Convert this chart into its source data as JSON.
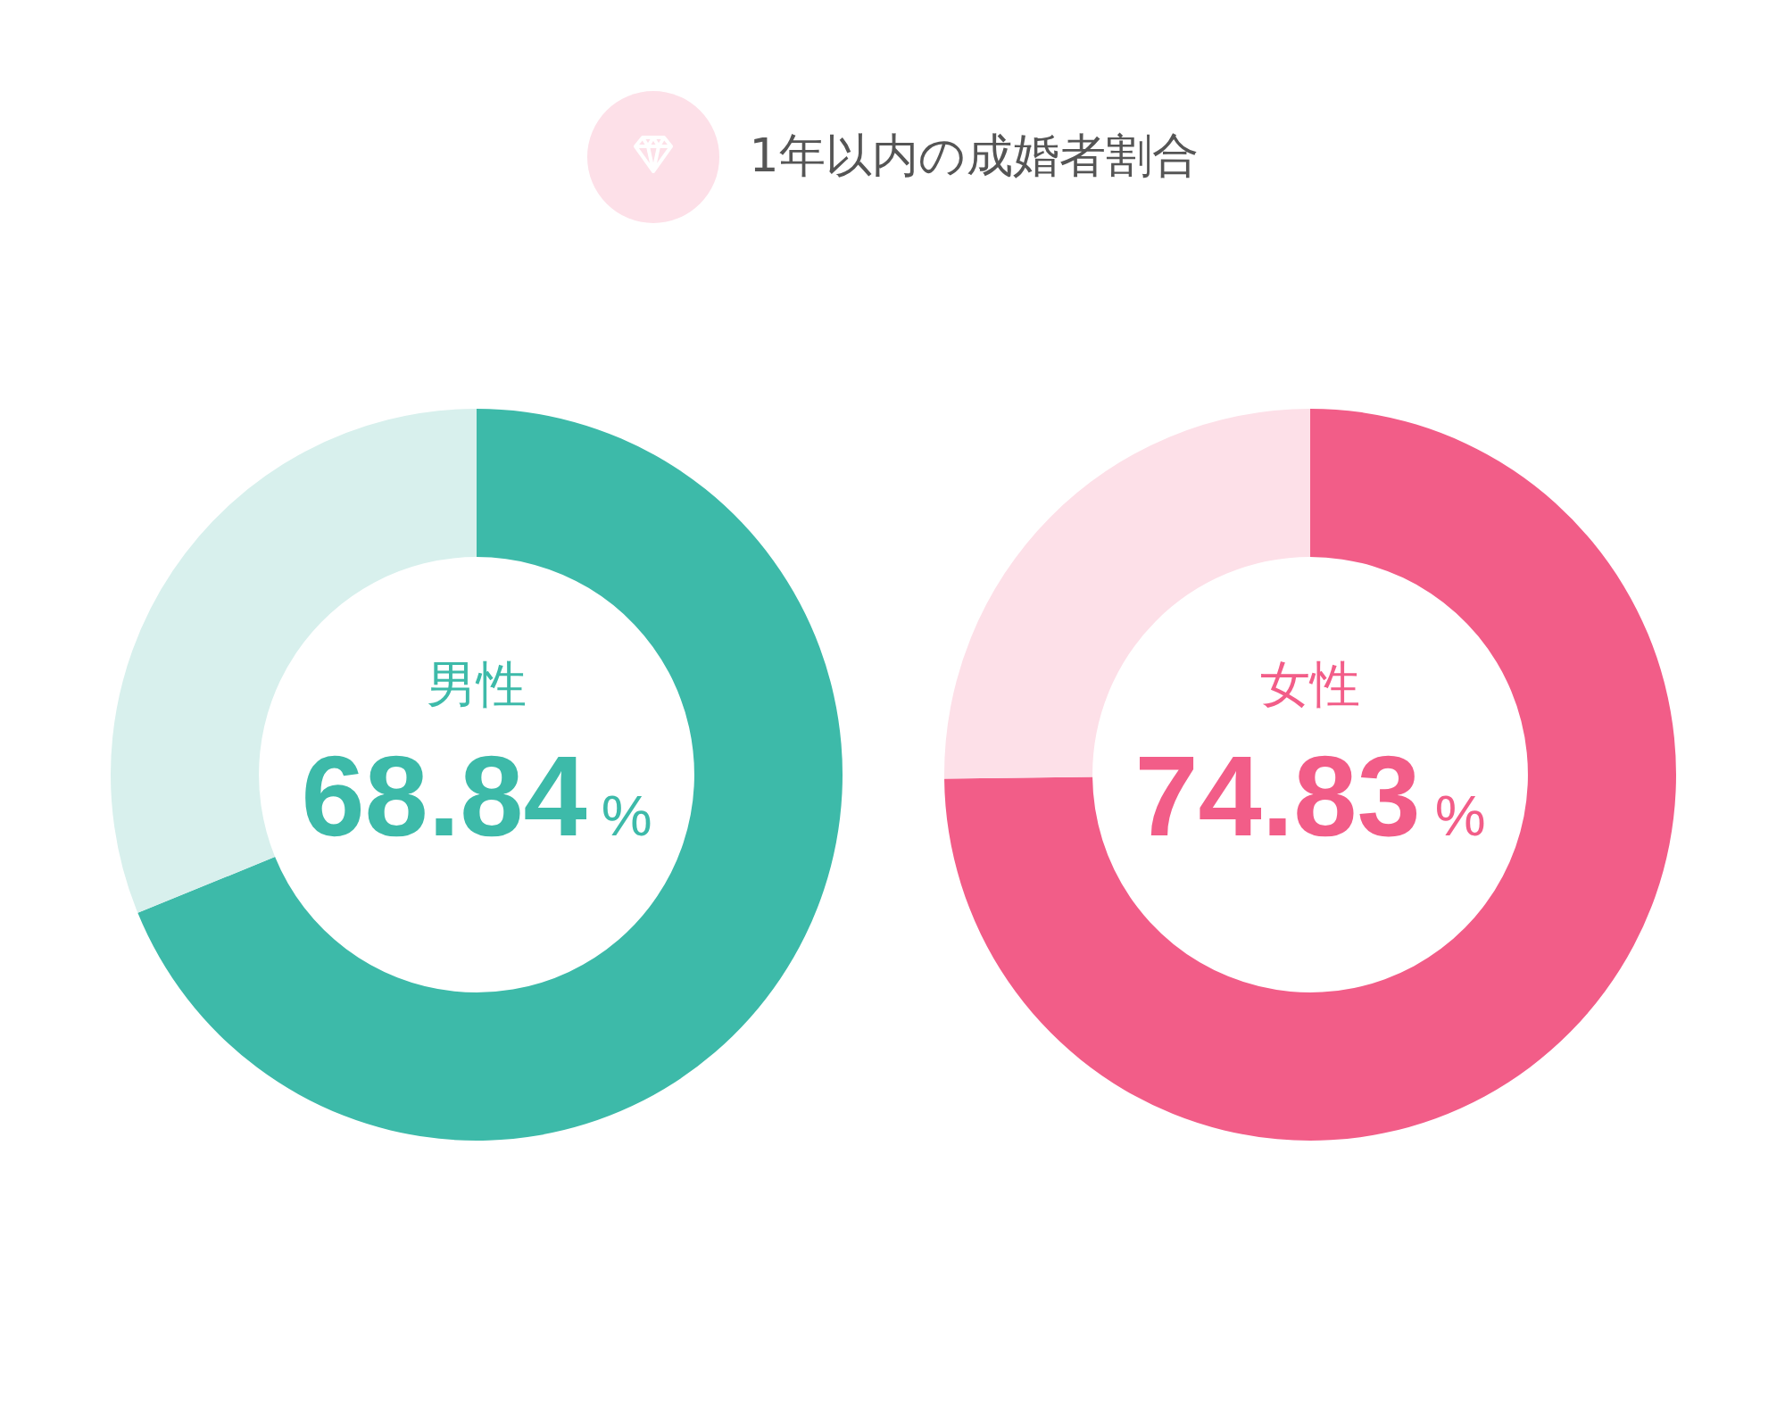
{
  "chart_data": [
    {
      "type": "other",
      "title": "1年以内の成婚者割合"
    },
    {
      "type": "donut",
      "title": "男性",
      "categories": [
        null,
        null
      ],
      "values": [
        68.84,
        31.16
      ],
      "colors": [
        "#3dbaa9",
        "#d8f0ed"
      ],
      "value_labels": [
        "68.84%",
        null
      ]
    },
    {
      "type": "donut",
      "title": "女性",
      "categories": [
        null,
        null
      ],
      "values": [
        74.83,
        25.17
      ],
      "colors": [
        "#f25d88",
        "#fde0e8"
      ],
      "value_labels": [
        "74.83%",
        null
      ]
    }
  ]
}
